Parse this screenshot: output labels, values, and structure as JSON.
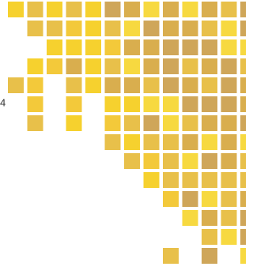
{
  "label": "4"
}
